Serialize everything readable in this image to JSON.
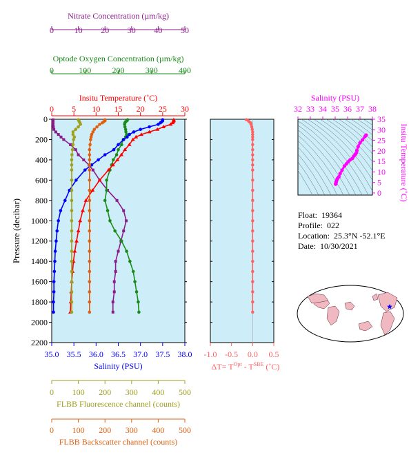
{
  "colors": {
    "nitrate": "#8b1a8b",
    "oxygen": "#1a8b1a",
    "temperature": "#ff0000",
    "salinity": "#0000ff",
    "fluorescence": "#a0a020",
    "backscatter": "#e06010",
    "dT": "#ff6060",
    "ts": "#ff00ff",
    "plot_bg": "#cdeef8"
  },
  "info": {
    "float_label": "Float:",
    "float": "19364",
    "profile_label": "Profile:",
    "profile": "022",
    "location_label": "Location:",
    "location": "25.3°N  -52.1°E",
    "date_label": "Date:",
    "date": "10/30/2021"
  },
  "map": {
    "marker": "star-marker"
  },
  "chart_data": [
    {
      "type": "line",
      "name": "main-profile",
      "ylabel": "Pressure (decibar)",
      "ylim": [
        2200,
        0
      ],
      "yticks": [
        0,
        200,
        400,
        600,
        800,
        1000,
        1200,
        1400,
        1600,
        1800,
        2000,
        2200
      ],
      "grid": false,
      "pressure": [
        5,
        15,
        25,
        35,
        50,
        75,
        100,
        125,
        150,
        175,
        200,
        250,
        300,
        350,
        400,
        450,
        500,
        600,
        700,
        800,
        900,
        1000,
        1100,
        1200,
        1300,
        1400,
        1500,
        1600,
        1700,
        1800,
        1900
      ],
      "axes": [
        {
          "title": "Nitrate Concentration (µm/kg)",
          "range": [
            0,
            50
          ],
          "ticks": [
            0,
            10,
            20,
            30,
            40,
            50
          ],
          "color": "nitrate",
          "position": "top-1"
        },
        {
          "title": "Optode Oxygen Concentration (µm/kg)",
          "range": [
            0,
            400
          ],
          "ticks": [
            0,
            100,
            200,
            300,
            400
          ],
          "color": "oxygen",
          "position": "top-2"
        },
        {
          "title": "Insitu Temperature (˚C)",
          "range": [
            0,
            30
          ],
          "ticks": [
            0,
            5,
            10,
            15,
            20,
            25,
            30
          ],
          "color": "temperature",
          "position": "top-3"
        },
        {
          "title": "Salinity (PSU)",
          "range": [
            35.0,
            38.0
          ],
          "ticks": [
            "35.0",
            "35.5",
            "36.0",
            "36.5",
            "37.0",
            "37.5",
            "38.0"
          ],
          "color": "salinity",
          "position": "bottom-1"
        },
        {
          "title": "FLBB Fluorescence channel (counts)",
          "range": [
            0,
            500
          ],
          "ticks": [
            0,
            100,
            200,
            300,
            400,
            500
          ],
          "color": "fluorescence",
          "position": "bottom-2"
        },
        {
          "title": "FLBB Backscatter channel (counts)",
          "range": [
            0,
            500
          ],
          "ticks": [
            0,
            100,
            200,
            300,
            400,
            500
          ],
          "color": "backscatter",
          "position": "bottom-3"
        }
      ],
      "series": [
        {
          "key": "nitrate",
          "axis": 0,
          "marker": "square",
          "values": [
            0.5,
            0.5,
            0.5,
            0.5,
            0.5,
            0.6,
            0.8,
            1.5,
            2.5,
            3.5,
            4.5,
            7,
            9,
            10,
            12,
            14,
            15.5,
            18,
            21,
            24.5,
            27,
            28,
            27,
            26,
            25,
            24,
            24,
            23.5,
            23.5,
            23,
            23
          ]
        },
        {
          "key": "oxygen",
          "axis": 1,
          "marker": "circle",
          "values": [
            228,
            226,
            222,
            220,
            219,
            220,
            222,
            223,
            225,
            222,
            215,
            210,
            200,
            195,
            185,
            180,
            175,
            165,
            165,
            160,
            168,
            175,
            190,
            210,
            225,
            235,
            245,
            250,
            255,
            260,
            262
          ]
        },
        {
          "key": "temperature",
          "axis": 2,
          "marker": "triangle",
          "values": [
            27.5,
            27.5,
            27.4,
            27.2,
            26.8,
            25.2,
            23.8,
            22,
            20.2,
            19,
            18.3,
            17.5,
            16.5,
            15.7,
            14.8,
            13.8,
            12.8,
            10.8,
            9.2,
            7.7,
            7.0,
            6.4,
            6.0,
            5.6,
            5.2,
            4.9,
            4.7,
            4.5,
            4.4,
            4.3,
            4.2
          ]
        },
        {
          "key": "salinity",
          "axis": 3,
          "marker": "circle",
          "values": [
            37.5,
            37.5,
            37.48,
            37.45,
            37.4,
            37.2,
            37.0,
            36.85,
            36.75,
            36.7,
            36.62,
            36.5,
            36.4,
            36.2,
            36.05,
            35.9,
            35.75,
            35.55,
            35.4,
            35.3,
            35.2,
            35.15,
            35.12,
            35.1,
            35.08,
            35.07,
            35.06,
            35.05,
            35.05,
            35.04,
            35.04
          ]
        },
        {
          "key": "fluorescence",
          "axis": 4,
          "marker": "circle",
          "values": [
            100,
            102,
            104,
            106,
            108,
            100,
            90,
            80,
            80,
            85,
            82,
            80,
            78,
            76,
            75,
            75,
            75,
            75,
            75,
            75,
            75,
            75,
            75,
            75,
            75,
            75,
            75,
            75,
            75,
            75,
            75
          ]
        },
        {
          "key": "backscatter",
          "axis": 5,
          "marker": "circle",
          "values": [
            200,
            200,
            195,
            190,
            180,
            170,
            160,
            155,
            150,
            148,
            146,
            144,
            142,
            142,
            142,
            142,
            142,
            142,
            142,
            142,
            142,
            142,
            142,
            142,
            142,
            142,
            142,
            142,
            142,
            142,
            142
          ]
        }
      ]
    },
    {
      "type": "line",
      "name": "delta-t",
      "xlabel": "ΔT= T",
      "xlabel_sup1": "Opt",
      "xlabel_mid": " - T",
      "xlabel_sup2": "SBE",
      "xlabel_tail": " (˚C)",
      "xlim": [
        -1.0,
        0.5
      ],
      "xticks": [
        "-1.0",
        "-0.5",
        "0.0",
        "0.5"
      ],
      "ylim": [
        2200,
        0
      ],
      "pressure": [
        5,
        15,
        25,
        35,
        50,
        75,
        100,
        125,
        150,
        175,
        200,
        250,
        300,
        350,
        400,
        450,
        500,
        600,
        700,
        800,
        900,
        1000,
        1100,
        1200,
        1300,
        1400,
        1500,
        1600,
        1700,
        1800,
        1900
      ],
      "values": [
        -0.15,
        -0.1,
        -0.08,
        -0.05,
        -0.04,
        -0.02,
        -0.01,
        0.0,
        0.0,
        0.0,
        0.0,
        0.0,
        0.0,
        0.0,
        0.0,
        0.0,
        0.0,
        0.0,
        0.0,
        0.0,
        0.0,
        0.0,
        0.0,
        0.0,
        0.0,
        0.0,
        0.0,
        0.0,
        0.0,
        0.0,
        0.0
      ]
    },
    {
      "type": "scatter",
      "name": "t-s-diagram",
      "xlabel": "Salinity (PSU)",
      "ylabel": "Insitu Temperature (˚C)",
      "xlim": [
        32,
        38
      ],
      "ylim": [
        -1,
        35
      ],
      "xticks": [
        32,
        33,
        34,
        35,
        36,
        37,
        38
      ],
      "yticks": [
        0,
        5,
        10,
        15,
        20,
        25,
        30,
        35
      ],
      "points": [
        [
          35.04,
          4.2
        ],
        [
          35.05,
          4.4
        ],
        [
          35.06,
          4.7
        ],
        [
          35.08,
          5.2
        ],
        [
          35.1,
          5.6
        ],
        [
          35.15,
          6.4
        ],
        [
          35.2,
          7.0
        ],
        [
          35.3,
          7.7
        ],
        [
          35.4,
          9.2
        ],
        [
          35.55,
          10.8
        ],
        [
          35.75,
          12.8
        ],
        [
          35.9,
          13.8
        ],
        [
          36.05,
          14.8
        ],
        [
          36.2,
          15.7
        ],
        [
          36.4,
          16.5
        ],
        [
          36.5,
          17.5
        ],
        [
          36.62,
          18.3
        ],
        [
          36.7,
          19.0
        ],
        [
          36.75,
          20.2
        ],
        [
          36.85,
          22.0
        ],
        [
          37.0,
          23.8
        ],
        [
          37.2,
          25.2
        ],
        [
          37.4,
          26.8
        ],
        [
          37.48,
          27.4
        ],
        [
          37.5,
          27.5
        ]
      ]
    }
  ]
}
